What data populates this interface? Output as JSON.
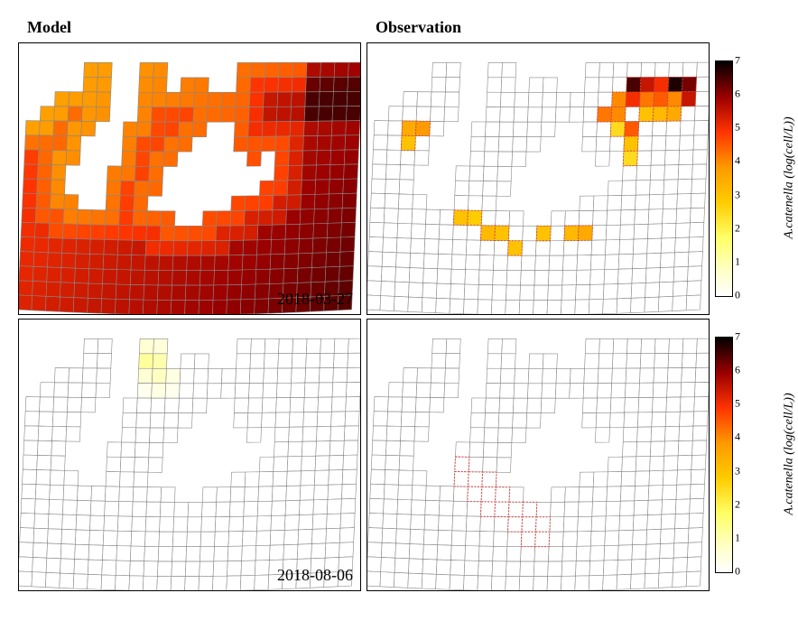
{
  "grid": {
    "cols": 24,
    "rows": 18,
    "skew_deg": -4
  },
  "titles": {
    "model": "Model",
    "observation": "Observation"
  },
  "dates": {
    "row1": "2018-03-27",
    "row2": "2018-08-06"
  },
  "colorbar": {
    "label": "A.catenella (log(cell/L))",
    "min": 0,
    "max": 7,
    "ticks": [
      0,
      1,
      2,
      3,
      4,
      5,
      6,
      7
    ],
    "stops": [
      {
        "v": 0.0,
        "c": "#ffffff"
      },
      {
        "v": 0.1,
        "c": "#ffffcc"
      },
      {
        "v": 0.25,
        "c": "#ffff66"
      },
      {
        "v": 0.4,
        "c": "#ffcc00"
      },
      {
        "v": 0.55,
        "c": "#ff9900"
      },
      {
        "v": 0.7,
        "c": "#ff3300"
      },
      {
        "v": 0.85,
        "c": "#990000"
      },
      {
        "v": 1.0,
        "c": "#000000"
      }
    ]
  },
  "grid_color": "#888888",
  "grid_stroke_width": 0.6,
  "land_mask": [
    [
      0,
      0,
      0,
      0,
      0,
      0,
      0,
      0,
      0,
      0,
      0,
      0,
      0,
      0,
      0,
      0,
      0,
      0,
      0,
      0,
      0,
      0,
      0,
      0
    ],
    [
      0,
      0,
      0,
      0,
      1,
      1,
      0,
      0,
      1,
      1,
      0,
      0,
      0,
      0,
      0,
      1,
      1,
      1,
      1,
      1,
      1,
      1,
      1,
      1
    ],
    [
      0,
      0,
      0,
      0,
      1,
      1,
      0,
      0,
      1,
      1,
      0,
      1,
      1,
      0,
      0,
      1,
      1,
      1,
      1,
      1,
      1,
      1,
      1,
      1
    ],
    [
      0,
      0,
      1,
      1,
      1,
      1,
      0,
      0,
      1,
      1,
      1,
      1,
      1,
      1,
      1,
      1,
      1,
      1,
      1,
      1,
      1,
      1,
      1,
      1
    ],
    [
      0,
      1,
      1,
      1,
      1,
      1,
      0,
      0,
      1,
      1,
      1,
      1,
      1,
      1,
      1,
      1,
      1,
      1,
      1,
      1,
      1,
      1,
      1,
      1
    ],
    [
      1,
      1,
      1,
      1,
      1,
      0,
      0,
      1,
      1,
      1,
      1,
      1,
      1,
      0,
      0,
      1,
      1,
      1,
      1,
      1,
      1,
      1,
      1,
      1
    ],
    [
      1,
      1,
      1,
      1,
      0,
      0,
      0,
      1,
      1,
      1,
      1,
      1,
      0,
      0,
      0,
      1,
      1,
      1,
      1,
      1,
      1,
      1,
      1,
      1
    ],
    [
      1,
      1,
      1,
      1,
      0,
      0,
      0,
      1,
      1,
      1,
      1,
      0,
      0,
      0,
      0,
      0,
      1,
      0,
      1,
      1,
      1,
      1,
      1,
      1
    ],
    [
      1,
      1,
      1,
      0,
      0,
      0,
      1,
      1,
      1,
      1,
      0,
      0,
      0,
      0,
      0,
      0,
      0,
      0,
      1,
      1,
      1,
      1,
      1,
      1
    ],
    [
      1,
      1,
      1,
      0,
      0,
      0,
      1,
      1,
      1,
      1,
      0,
      0,
      0,
      0,
      0,
      0,
      0,
      1,
      1,
      1,
      1,
      1,
      1,
      1
    ],
    [
      1,
      1,
      1,
      1,
      0,
      0,
      1,
      1,
      1,
      0,
      0,
      0,
      0,
      0,
      0,
      1,
      1,
      1,
      1,
      1,
      1,
      1,
      1,
      1
    ],
    [
      1,
      1,
      1,
      1,
      1,
      1,
      1,
      1,
      1,
      1,
      1,
      0,
      0,
      1,
      1,
      1,
      1,
      1,
      1,
      1,
      1,
      1,
      1,
      1
    ],
    [
      1,
      1,
      1,
      1,
      1,
      1,
      1,
      1,
      1,
      1,
      1,
      1,
      1,
      1,
      1,
      1,
      1,
      1,
      1,
      1,
      1,
      1,
      1,
      1
    ],
    [
      1,
      1,
      1,
      1,
      1,
      1,
      1,
      1,
      1,
      1,
      1,
      1,
      1,
      1,
      1,
      1,
      1,
      1,
      1,
      1,
      1,
      1,
      1,
      1
    ],
    [
      1,
      1,
      1,
      1,
      1,
      1,
      1,
      1,
      1,
      1,
      1,
      1,
      1,
      1,
      1,
      1,
      1,
      1,
      1,
      1,
      1,
      1,
      1,
      1
    ],
    [
      1,
      1,
      1,
      1,
      1,
      1,
      1,
      1,
      1,
      1,
      1,
      1,
      1,
      1,
      1,
      1,
      1,
      1,
      1,
      1,
      1,
      1,
      1,
      1
    ],
    [
      1,
      1,
      1,
      1,
      1,
      1,
      1,
      1,
      1,
      1,
      1,
      1,
      1,
      1,
      1,
      1,
      1,
      1,
      1,
      1,
      1,
      1,
      1,
      1
    ],
    [
      1,
      1,
      1,
      1,
      1,
      1,
      1,
      1,
      1,
      1,
      1,
      1,
      1,
      1,
      1,
      1,
      1,
      1,
      1,
      1,
      1,
      1,
      1,
      1
    ]
  ],
  "model_row1_values": {
    "base": 4.5,
    "coast_boost": -1.5,
    "east_boost": 1.2,
    "south_boost": 0.8
  },
  "model_row2_values": {
    "hotspots": [
      {
        "r": 2,
        "c": 8,
        "v": 1.2
      },
      {
        "r": 2,
        "c": 9,
        "v": 1.0
      },
      {
        "r": 3,
        "c": 9,
        "v": 0.8
      }
    ]
  },
  "obs_row1_points": [
    {
      "r": 2,
      "c": 18,
      "v": 6.5
    },
    {
      "r": 2,
      "c": 19,
      "v": 5.5
    },
    {
      "r": 2,
      "c": 20,
      "v": 5.0
    },
    {
      "r": 2,
      "c": 21,
      "v": 6.8
    },
    {
      "r": 2,
      "c": 22,
      "v": 6.2
    },
    {
      "r": 3,
      "c": 17,
      "v": 4.0
    },
    {
      "r": 3,
      "c": 18,
      "v": 5.0
    },
    {
      "r": 3,
      "c": 19,
      "v": 4.2
    },
    {
      "r": 3,
      "c": 20,
      "v": 4.5
    },
    {
      "r": 3,
      "c": 21,
      "v": 4.0
    },
    {
      "r": 3,
      "c": 22,
      "v": 5.5
    },
    {
      "r": 4,
      "c": 16,
      "v": 4.2
    },
    {
      "r": 4,
      "c": 17,
      "v": 4.0
    },
    {
      "r": 4,
      "c": 19,
      "v": 3.0
    },
    {
      "r": 4,
      "c": 20,
      "v": 3.2
    },
    {
      "r": 4,
      "c": 21,
      "v": 3.5
    },
    {
      "r": 5,
      "c": 17,
      "v": 2.5
    },
    {
      "r": 5,
      "c": 18,
      "v": 4.5
    },
    {
      "r": 6,
      "c": 18,
      "v": 3.0
    },
    {
      "r": 7,
      "c": 18,
      "v": 2.5
    },
    {
      "r": 5,
      "c": 2,
      "v": 3.5
    },
    {
      "r": 5,
      "c": 3,
      "v": 3.8
    },
    {
      "r": 6,
      "c": 2,
      "v": 3.0
    },
    {
      "r": 11,
      "c": 6,
      "v": 3.0
    },
    {
      "r": 11,
      "c": 7,
      "v": 2.8
    },
    {
      "r": 12,
      "c": 8,
      "v": 3.2
    },
    {
      "r": 12,
      "c": 9,
      "v": 3.0
    },
    {
      "r": 12,
      "c": 12,
      "v": 3.0
    },
    {
      "r": 12,
      "c": 14,
      "v": 3.2
    },
    {
      "r": 12,
      "c": 15,
      "v": 3.5
    },
    {
      "r": 13,
      "c": 10,
      "v": 3.0
    }
  ],
  "obs_row2_points": [
    {
      "r": 8,
      "c": 4
    },
    {
      "r": 8,
      "c": 5
    },
    {
      "r": 9,
      "c": 4
    },
    {
      "r": 9,
      "c": 5
    },
    {
      "r": 9,
      "c": 6
    },
    {
      "r": 10,
      "c": 5
    },
    {
      "r": 10,
      "c": 6
    },
    {
      "r": 10,
      "c": 7
    },
    {
      "r": 10,
      "c": 8
    },
    {
      "r": 11,
      "c": 7
    },
    {
      "r": 11,
      "c": 8
    },
    {
      "r": 11,
      "c": 9
    },
    {
      "r": 12,
      "c": 8
    },
    {
      "r": 12,
      "c": 9
    },
    {
      "r": 12,
      "c": 10
    },
    {
      "r": 12,
      "c": 11
    },
    {
      "r": 13,
      "c": 10
    },
    {
      "r": 13,
      "c": 11
    },
    {
      "r": 13,
      "c": 12
    },
    {
      "r": 14,
      "c": 11
    },
    {
      "r": 14,
      "c": 12
    },
    {
      "r": 9,
      "c": 10
    },
    {
      "r": 9,
      "c": 11
    },
    {
      "r": 10,
      "c": 11
    },
    {
      "r": 10,
      "c": 12
    }
  ],
  "obs_empty_stroke": "#cc4444",
  "obs_empty_dash": "2,1.5"
}
